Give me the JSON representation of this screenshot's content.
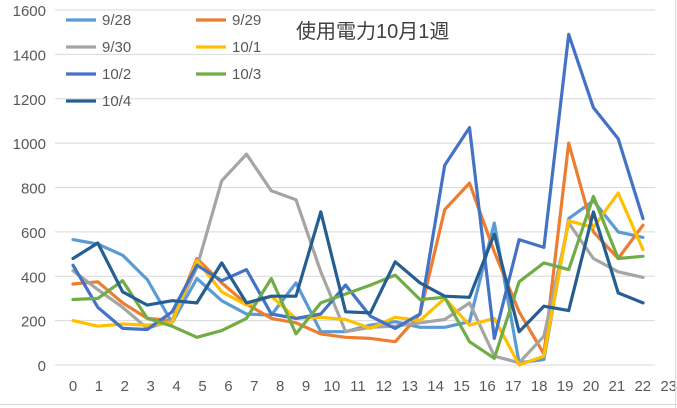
{
  "chart_data": {
    "type": "line",
    "title": "使用電力10月1週",
    "xlabel": "",
    "ylabel": "",
    "ylim": [
      0,
      1600
    ],
    "yticks": [
      0,
      200,
      400,
      600,
      800,
      1000,
      1200,
      1400,
      1600
    ],
    "grid": true,
    "legend": "top-left",
    "x": [
      0,
      1,
      2,
      3,
      4,
      5,
      6,
      7,
      8,
      9,
      10,
      11,
      12,
      13,
      14,
      15,
      16,
      17,
      18,
      19,
      20,
      21,
      22,
      23
    ],
    "series": [
      {
        "name": "9/28",
        "color": "#5B9BD5",
        "values": [
          565,
          545,
          495,
          385,
          190,
          390,
          290,
          230,
          225,
          370,
          150,
          150,
          180,
          195,
          170,
          170,
          195,
          640,
          10,
          25,
          660,
          740,
          600,
          575
        ]
      },
      {
        "name": "9/29",
        "color": "#ED7D31",
        "values": [
          365,
          375,
          280,
          210,
          200,
          480,
          370,
          275,
          210,
          190,
          140,
          125,
          120,
          105,
          230,
          700,
          820,
          510,
          240,
          50,
          1000,
          600,
          480,
          630
        ]
      },
      {
        "name": "9/30",
        "color": "#A5A5A5",
        "values": [
          425,
          340,
          260,
          165,
          200,
          440,
          830,
          950,
          785,
          745,
          420,
          150,
          170,
          175,
          190,
          205,
          280,
          40,
          10,
          130,
          640,
          480,
          420,
          395
        ]
      },
      {
        "name": "10/1",
        "color": "#FFC000",
        "values": [
          200,
          175,
          185,
          180,
          190,
          470,
          330,
          270,
          310,
          210,
          215,
          205,
          165,
          215,
          200,
          300,
          180,
          210,
          0,
          40,
          650,
          620,
          775,
          520
        ]
      },
      {
        "name": "10/2",
        "color": "#4472C4",
        "values": [
          450,
          260,
          165,
          160,
          240,
          450,
          380,
          430,
          230,
          210,
          230,
          360,
          220,
          165,
          230,
          900,
          1070,
          120,
          565,
          530,
          1490,
          1160,
          1020,
          660
        ]
      },
      {
        "name": "10/3",
        "color": "#70AD47",
        "values": [
          295,
          300,
          380,
          210,
          175,
          125,
          155,
          210,
          390,
          140,
          280,
          320,
          360,
          405,
          295,
          305,
          105,
          30,
          375,
          460,
          430,
          760,
          480,
          490
        ]
      },
      {
        "name": "10/4",
        "color": "#255E91",
        "values": [
          480,
          550,
          330,
          270,
          290,
          280,
          460,
          280,
          310,
          310,
          690,
          240,
          235,
          465,
          370,
          310,
          305,
          590,
          150,
          265,
          245,
          690,
          325,
          280
        ]
      }
    ]
  }
}
